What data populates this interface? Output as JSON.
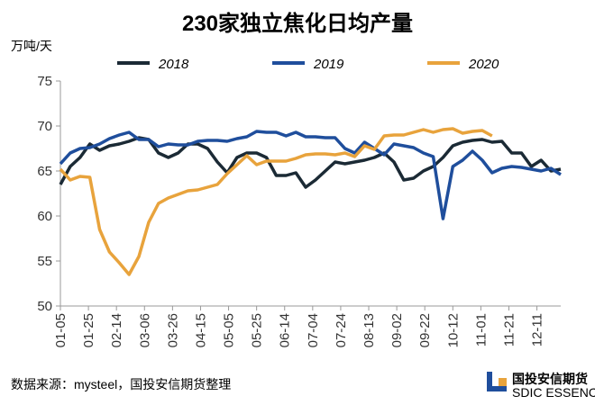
{
  "chart_data": {
    "type": "line",
    "title": "230家独立焦化日均产量",
    "y_label": "万吨/天",
    "source": "数据来源：mysteel，国投安信期货整理",
    "logo": {
      "name": "国投安信期货",
      "subtitle": "SDIC ESSENCE FUTURES"
    },
    "x": [
      5,
      12,
      19,
      26,
      33,
      40,
      47,
      54,
      61,
      68,
      75,
      82,
      89,
      96,
      103,
      110,
      117,
      124,
      131,
      138,
      145,
      152,
      159,
      166,
      173,
      180,
      187,
      194,
      201,
      208,
      215,
      222,
      229,
      236,
      243,
      250,
      257,
      264,
      271,
      278,
      285,
      292,
      299,
      306,
      313,
      320,
      327,
      334,
      341,
      348,
      355,
      362
    ],
    "xlim": [
      5,
      362
    ],
    "xticks": [
      {
        "value": 5,
        "label": "01-05"
      },
      {
        "value": 25,
        "label": "01-25"
      },
      {
        "value": 45,
        "label": "02-14"
      },
      {
        "value": 65,
        "label": "03-06"
      },
      {
        "value": 85,
        "label": "03-26"
      },
      {
        "value": 105,
        "label": "04-15"
      },
      {
        "value": 125,
        "label": "05-05"
      },
      {
        "value": 145,
        "label": "05-25"
      },
      {
        "value": 165,
        "label": "06-14"
      },
      {
        "value": 185,
        "label": "07-04"
      },
      {
        "value": 205,
        "label": "07-24"
      },
      {
        "value": 225,
        "label": "08-13"
      },
      {
        "value": 245,
        "label": "09-02"
      },
      {
        "value": 265,
        "label": "09-22"
      },
      {
        "value": 285,
        "label": "10-12"
      },
      {
        "value": 305,
        "label": "11-01"
      },
      {
        "value": 325,
        "label": "11-21"
      },
      {
        "value": 345,
        "label": "12-11"
      }
    ],
    "ylim": [
      50,
      75
    ],
    "yticks": [
      50,
      55,
      60,
      65,
      70,
      75
    ],
    "grid": false,
    "legend": "top",
    "series": [
      {
        "name": "2018",
        "color": "#1b2a35",
        "values": [
          63.5,
          65.5,
          66.5,
          68,
          67.3,
          67.8,
          68,
          68.3,
          68.7,
          68.5,
          67,
          66.5,
          67,
          68,
          68,
          67.5,
          66,
          64.8,
          66.5,
          67,
          67,
          66.5,
          64.5,
          64.5,
          64.8,
          63.2,
          64,
          65,
          66,
          65.8,
          66,
          66.2,
          66.5,
          67,
          66,
          64,
          64.2,
          65,
          65.5,
          66.5,
          67.8,
          68.2,
          68.4,
          68.5,
          68.2,
          68.3,
          67,
          67,
          65.5,
          66.2,
          65,
          65.2
        ]
      },
      {
        "name": "2019",
        "color": "#1f4e9c",
        "values": [
          65.8,
          67,
          67.5,
          67.6,
          68,
          68.6,
          69,
          69.3,
          68.5,
          68.5,
          67.7,
          68,
          67.9,
          67.9,
          68.3,
          68.4,
          68.4,
          68.3,
          68.6,
          68.8,
          69.4,
          69.3,
          69.3,
          68.9,
          69.3,
          68.8,
          68.8,
          68.7,
          68.7,
          67.5,
          67,
          68.2,
          67.5,
          66.8,
          68,
          67.8,
          67.6,
          67,
          66.6,
          59.7,
          65.5,
          66.2,
          67.2,
          66.2,
          64.8,
          65.3,
          65.5,
          65.4,
          65.2,
          65,
          65.3,
          64.6
        ]
      },
      {
        "name": "2020",
        "color": "#e8a33c",
        "values": [
          65.2,
          64,
          64.4,
          64.3,
          58.5,
          56,
          54.8,
          53.5,
          55.5,
          59.3,
          61.4,
          62,
          62.4,
          62.8,
          62.9,
          63.2,
          63.5,
          64.7,
          65.7,
          66.7,
          65.7,
          66.1,
          66.1,
          66.1,
          66.4,
          66.8,
          66.9,
          66.9,
          66.8,
          67,
          66.6,
          67.8,
          67.4,
          68.9,
          69,
          69,
          69.3,
          69.6,
          69.3,
          69.6,
          69.7,
          69.2,
          69.4,
          69.5,
          68.9,
          null,
          null,
          null,
          null,
          null,
          null,
          null
        ]
      }
    ]
  }
}
